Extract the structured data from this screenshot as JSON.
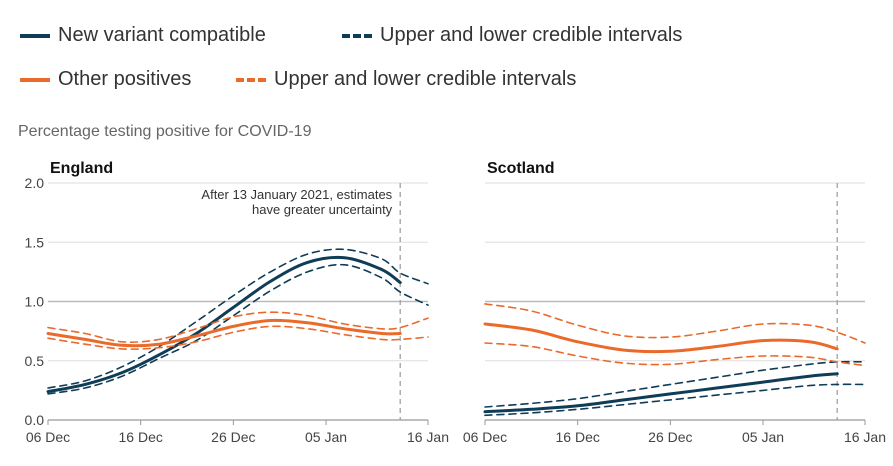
{
  "legend": [
    {
      "label": "New variant compatible",
      "style": "solid",
      "color": "#0f3c56"
    },
    {
      "label": "Upper and lower credible intervals",
      "style": "dashed",
      "color": "#0f3c56"
    },
    {
      "label": "Other positives",
      "style": "solid",
      "color": "#ea6a2b"
    },
    {
      "label": "Upper and lower credible intervals",
      "style": "dashed",
      "color": "#ea6a2b"
    }
  ],
  "subtitle": "Percentage testing positive for COVID-19",
  "chart_data": [
    {
      "type": "line",
      "title": "England",
      "x_ticks": [
        "06 Dec",
        "16 Dec",
        "26 Dec",
        "05 Jan",
        "16 Jan"
      ],
      "x_tick_days": [
        0,
        10,
        20,
        30,
        41
      ],
      "x_range_days": [
        0,
        41
      ],
      "ylim": [
        0,
        2.0
      ],
      "y_ticks": [
        "0.0",
        "0.5",
        "1.0",
        "1.5",
        "2.0"
      ],
      "grid": true,
      "reference_line": {
        "date": "13 Jan",
        "day": 38
      },
      "annotation": [
        "After 13 January 2021, estimates",
        "have greater uncertainty"
      ],
      "series": [
        {
          "name": "New variant compatible",
          "kind": "estimate",
          "color": "#0f3c56",
          "x": [
            0,
            4,
            8,
            12,
            16,
            20,
            24,
            28,
            32,
            36,
            38
          ],
          "y": [
            0.24,
            0.3,
            0.4,
            0.55,
            0.73,
            0.95,
            1.17,
            1.33,
            1.37,
            1.27,
            1.16
          ]
        },
        {
          "name": "New variant compatible",
          "kind": "upper",
          "color": "#0f3c56",
          "x": [
            0,
            4,
            8,
            12,
            16,
            20,
            24,
            28,
            32,
            36,
            38,
            41
          ],
          "y": [
            0.27,
            0.33,
            0.45,
            0.62,
            0.83,
            1.05,
            1.25,
            1.4,
            1.44,
            1.36,
            1.24,
            1.15
          ]
        },
        {
          "name": "New variant compatible",
          "kind": "lower",
          "color": "#0f3c56",
          "x": [
            0,
            4,
            8,
            12,
            16,
            20,
            24,
            28,
            32,
            36,
            38,
            41
          ],
          "y": [
            0.22,
            0.27,
            0.37,
            0.52,
            0.67,
            0.88,
            1.09,
            1.25,
            1.31,
            1.2,
            1.08,
            0.97
          ]
        },
        {
          "name": "Other positives",
          "kind": "estimate",
          "color": "#ea6a2b",
          "x": [
            0,
            4,
            8,
            12,
            16,
            20,
            24,
            28,
            32,
            36,
            38
          ],
          "y": [
            0.73,
            0.68,
            0.63,
            0.64,
            0.71,
            0.79,
            0.84,
            0.82,
            0.77,
            0.73,
            0.73
          ]
        },
        {
          "name": "Other positives",
          "kind": "upper",
          "color": "#ea6a2b",
          "x": [
            0,
            4,
            8,
            12,
            16,
            20,
            24,
            28,
            32,
            36,
            38,
            41
          ],
          "y": [
            0.78,
            0.73,
            0.66,
            0.68,
            0.77,
            0.87,
            0.91,
            0.88,
            0.81,
            0.77,
            0.78,
            0.86
          ]
        },
        {
          "name": "Other positives",
          "kind": "lower",
          "color": "#ea6a2b",
          "x": [
            0,
            4,
            8,
            12,
            16,
            20,
            24,
            28,
            32,
            36,
            38,
            41
          ],
          "y": [
            0.69,
            0.64,
            0.6,
            0.61,
            0.66,
            0.74,
            0.79,
            0.77,
            0.72,
            0.68,
            0.68,
            0.7
          ]
        }
      ]
    },
    {
      "type": "line",
      "title": "Scotland",
      "x_ticks": [
        "06 Dec",
        "16 Dec",
        "26 Dec",
        "05 Jan",
        "16 Jan"
      ],
      "x_tick_days": [
        0,
        10,
        20,
        30,
        41
      ],
      "x_range_days": [
        0,
        41
      ],
      "ylim": [
        0,
        2.0
      ],
      "grid": true,
      "reference_line": {
        "date": "13 Jan",
        "day": 38
      },
      "series": [
        {
          "name": "New variant compatible",
          "kind": "estimate",
          "color": "#0f3c56",
          "x": [
            0,
            5,
            10,
            15,
            20,
            25,
            30,
            35,
            38
          ],
          "y": [
            0.07,
            0.09,
            0.12,
            0.17,
            0.22,
            0.27,
            0.32,
            0.37,
            0.39
          ]
        },
        {
          "name": "New variant compatible",
          "kind": "upper",
          "color": "#0f3c56",
          "x": [
            0,
            5,
            10,
            15,
            20,
            25,
            30,
            35,
            38,
            41
          ],
          "y": [
            0.11,
            0.14,
            0.18,
            0.24,
            0.3,
            0.36,
            0.42,
            0.47,
            0.49,
            0.49
          ]
        },
        {
          "name": "New variant compatible",
          "kind": "lower",
          "color": "#0f3c56",
          "x": [
            0,
            5,
            10,
            15,
            20,
            25,
            30,
            35,
            38,
            41
          ],
          "y": [
            0.04,
            0.06,
            0.09,
            0.13,
            0.17,
            0.21,
            0.25,
            0.29,
            0.3,
            0.3
          ]
        },
        {
          "name": "Other positives",
          "kind": "estimate",
          "color": "#ea6a2b",
          "x": [
            0,
            5,
            10,
            15,
            20,
            25,
            30,
            35,
            38
          ],
          "y": [
            0.81,
            0.76,
            0.66,
            0.59,
            0.58,
            0.62,
            0.67,
            0.66,
            0.6
          ]
        },
        {
          "name": "Other positives",
          "kind": "upper",
          "color": "#ea6a2b",
          "x": [
            0,
            5,
            10,
            15,
            20,
            25,
            30,
            35,
            38,
            41
          ],
          "y": [
            0.98,
            0.92,
            0.8,
            0.71,
            0.7,
            0.75,
            0.81,
            0.8,
            0.74,
            0.65
          ]
        },
        {
          "name": "Other positives",
          "kind": "lower",
          "color": "#ea6a2b",
          "x": [
            0,
            5,
            10,
            15,
            20,
            25,
            30,
            35,
            38,
            41
          ],
          "y": [
            0.65,
            0.62,
            0.54,
            0.48,
            0.47,
            0.51,
            0.54,
            0.53,
            0.49,
            0.46
          ]
        }
      ]
    }
  ]
}
